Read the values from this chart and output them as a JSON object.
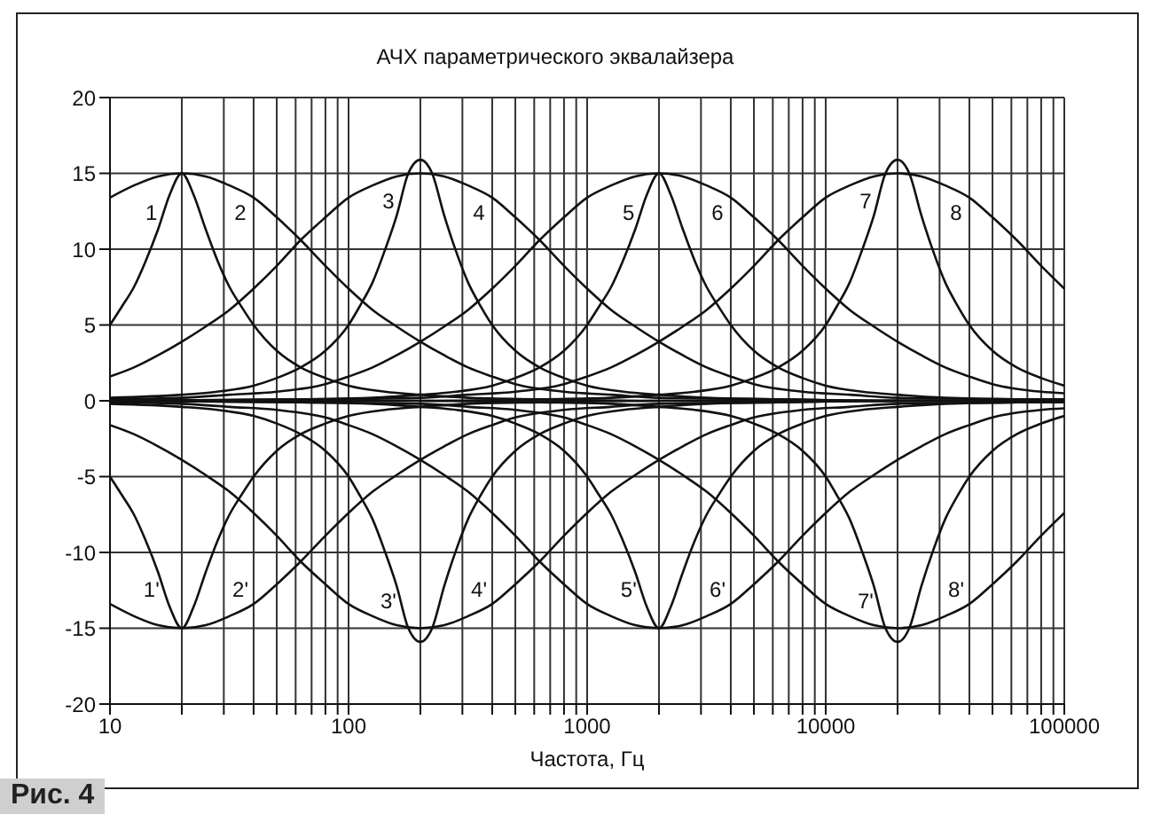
{
  "chart_data": {
    "type": "line",
    "title": "АЧХ параметрического эквалайзера",
    "xlabel": "Частота, Гц",
    "log": "x",
    "grid": true,
    "xlim": [
      10,
      100000
    ],
    "xticks": [
      10,
      {
        "value": 20,
        "label": null
      },
      {
        "value": 30,
        "label": null
      },
      {
        "value": 40,
        "label": null
      },
      {
        "value": 50,
        "label": null
      },
      {
        "value": 60,
        "label": null
      },
      {
        "value": 70,
        "label": null
      },
      {
        "value": 80,
        "label": null
      },
      {
        "value": 90,
        "label": null
      },
      100,
      {
        "value": 200,
        "label": null
      },
      {
        "value": 300,
        "label": null
      },
      {
        "value": 400,
        "label": null
      },
      {
        "value": 500,
        "label": null
      },
      {
        "value": 600,
        "label": null
      },
      {
        "value": 700,
        "label": null
      },
      {
        "value": 800,
        "label": null
      },
      {
        "value": 900,
        "label": null
      },
      1000,
      {
        "value": 2000,
        "label": null
      },
      {
        "value": 3000,
        "label": null
      },
      {
        "value": 4000,
        "label": null
      },
      {
        "value": 5000,
        "label": null
      },
      {
        "value": 6000,
        "label": null
      },
      {
        "value": 7000,
        "label": null
      },
      {
        "value": 8000,
        "label": null
      },
      {
        "value": 9000,
        "label": null
      },
      10000,
      {
        "value": 20000,
        "label": null
      },
      {
        "value": 30000,
        "label": null
      },
      {
        "value": 40000,
        "label": null
      },
      {
        "value": 50000,
        "label": null
      },
      {
        "value": 60000,
        "label": null
      },
      {
        "value": 70000,
        "label": null
      },
      {
        "value": 80000,
        "label": null
      },
      {
        "value": 90000,
        "label": null
      },
      100000
    ],
    "ylim": [
      -20,
      20
    ],
    "yticks": [
      -20,
      -15,
      -10,
      -5,
      0,
      5,
      10,
      15,
      20
    ],
    "series": [
      {
        "name": "1",
        "color": "#111111",
        "x": [
          10,
          11.2,
          12.6,
          14.1,
          15.9,
          17.8,
          20,
          22.4,
          25.2,
          28.3,
          31.7,
          35.6,
          40,
          50,
          63,
          80,
          100,
          142,
          200,
          317,
          632,
          2000,
          100000
        ],
        "values": [
          5.0,
          6.2,
          7.5,
          9.2,
          11.3,
          13.6,
          15,
          13.6,
          11.3,
          9.2,
          7.5,
          6.2,
          5.0,
          3.3,
          2.2,
          1.5,
          1.0,
          0.6,
          0.4,
          0.2,
          0.1,
          0,
          0
        ]
      },
      {
        "name": "2",
        "color": "#111111",
        "x": [
          10,
          12.6,
          15.9,
          20,
          25.2,
          31.7,
          40,
          50,
          63,
          80,
          100,
          126,
          159,
          200,
          252,
          317,
          400,
          500,
          800,
          1260,
          2000,
          6320,
          20000,
          100000
        ],
        "values": [
          13.4,
          14.2,
          14.8,
          15,
          14.8,
          14.2,
          13.4,
          12.1,
          10.6,
          8.9,
          7.4,
          6.0,
          4.9,
          3.9,
          3.0,
          2.2,
          1.6,
          1.1,
          0.6,
          0.4,
          0.2,
          0.1,
          0,
          0
        ]
      },
      {
        "name": "3",
        "color": "#111111",
        "x": [
          10,
          20,
          28.2,
          40,
          50,
          63,
          80,
          100,
          112,
          126,
          141,
          159,
          178,
          200,
          224,
          252,
          283,
          317,
          356,
          400,
          500,
          632,
          800,
          1000,
          1420,
          2000,
          3170,
          6320,
          20000,
          100000
        ],
        "values": [
          0.2,
          0.4,
          0.6,
          1.0,
          1.5,
          2.2,
          3.3,
          5.0,
          6.3,
          7.8,
          9.8,
          12.2,
          15.0,
          15.9,
          15.0,
          12.2,
          9.8,
          7.8,
          6.3,
          5.0,
          3.3,
          2.2,
          1.5,
          1.0,
          0.6,
          0.4,
          0.2,
          0.1,
          0,
          0
        ]
      },
      {
        "name": "4",
        "color": "#111111",
        "x": [
          10,
          12.6,
          15.9,
          20,
          25.2,
          31.7,
          40,
          50,
          63,
          80,
          100,
          126,
          159,
          200,
          252,
          317,
          400,
          500,
          632,
          800,
          1000,
          1260,
          1590,
          2000,
          2520,
          3170,
          4000,
          5000,
          8000,
          12600,
          20000,
          63200,
          100000
        ],
        "values": [
          1.6,
          2.2,
          3.0,
          3.9,
          4.9,
          6.0,
          7.4,
          8.9,
          10.6,
          12.1,
          13.4,
          14.2,
          14.8,
          15,
          14.8,
          14.2,
          13.4,
          12.1,
          10.6,
          8.9,
          7.4,
          6.0,
          4.9,
          3.9,
          3.0,
          2.2,
          1.6,
          1.1,
          0.6,
          0.4,
          0.2,
          0.1,
          0
        ]
      },
      {
        "name": "5",
        "color": "#111111",
        "x": [
          10,
          63,
          126,
          200,
          283,
          400,
          500,
          632,
          800,
          1000,
          1120,
          1260,
          1410,
          1590,
          1780,
          2000,
          2240,
          2520,
          2830,
          3170,
          3560,
          4000,
          5000,
          6320,
          8000,
          10000,
          14200,
          20000,
          31700,
          63200,
          100000
        ],
        "values": [
          0,
          0.1,
          0.2,
          0.4,
          0.6,
          1.0,
          1.5,
          2.2,
          3.3,
          5.0,
          6.2,
          7.5,
          9.2,
          11.3,
          13.6,
          15,
          13.6,
          11.3,
          9.2,
          7.5,
          6.2,
          5.0,
          3.3,
          2.2,
          1.5,
          1.0,
          0.6,
          0.4,
          0.2,
          0.1,
          0.1
        ]
      },
      {
        "name": "6",
        "color": "#111111",
        "x": [
          10,
          20,
          31.7,
          50,
          80,
          100,
          126,
          159,
          200,
          252,
          317,
          400,
          500,
          632,
          800,
          1000,
          1260,
          1590,
          2000,
          2520,
          3170,
          4000,
          5000,
          6320,
          8000,
          10000,
          12600,
          15900,
          20000,
          25200,
          31700,
          40000,
          50000,
          80000,
          100000
        ],
        "values": [
          0.1,
          0.2,
          0.4,
          0.6,
          1.1,
          1.6,
          2.2,
          3.0,
          3.9,
          4.9,
          6.0,
          7.4,
          8.9,
          10.6,
          12.1,
          13.4,
          14.2,
          14.8,
          15,
          14.8,
          14.2,
          13.4,
          12.1,
          10.6,
          8.9,
          7.4,
          6.0,
          4.9,
          3.9,
          3.0,
          2.2,
          1.6,
          1.1,
          0.6,
          0.5
        ]
      },
      {
        "name": "7",
        "color": "#111111",
        "x": [
          10,
          200,
          632,
          1260,
          2000,
          2830,
          4000,
          5000,
          6320,
          8000,
          10000,
          11200,
          12600,
          14100,
          15900,
          17800,
          20000,
          22400,
          25200,
          28300,
          31700,
          35600,
          40000,
          50000,
          63200,
          80000,
          100000
        ],
        "values": [
          0,
          0,
          0.1,
          0.2,
          0.4,
          0.6,
          1.0,
          1.5,
          2.2,
          3.3,
          5.0,
          6.3,
          7.8,
          9.8,
          12.2,
          15.0,
          15.9,
          15.0,
          12.2,
          9.8,
          7.8,
          6.3,
          5.0,
          3.3,
          2.2,
          1.5,
          1.0
        ]
      },
      {
        "name": "8",
        "color": "#111111",
        "x": [
          10,
          63,
          200,
          317,
          500,
          800,
          1000,
          1260,
          1590,
          2000,
          2520,
          3170,
          4000,
          5000,
          6320,
          8000,
          10000,
          12600,
          15900,
          20000,
          25200,
          31700,
          40000,
          50000,
          63200,
          80000,
          100000
        ],
        "values": [
          0,
          0.1,
          0.2,
          0.4,
          0.6,
          1.1,
          1.6,
          2.2,
          3.0,
          3.9,
          4.9,
          6.0,
          7.4,
          8.9,
          10.6,
          12.1,
          13.4,
          14.2,
          14.8,
          15,
          14.8,
          14.2,
          13.4,
          12.1,
          10.6,
          8.9,
          7.4
        ]
      },
      {
        "name": "1'",
        "color": "#111111",
        "x": [
          10,
          11.2,
          12.6,
          14.1,
          15.9,
          17.8,
          20,
          22.4,
          25.2,
          28.3,
          31.7,
          35.6,
          40,
          50,
          63,
          80,
          100,
          142,
          200,
          317,
          632,
          2000,
          100000
        ],
        "values": [
          -5.0,
          -6.2,
          -7.5,
          -9.2,
          -11.3,
          -13.6,
          -15,
          -13.6,
          -11.3,
          -9.2,
          -7.5,
          -6.2,
          -5.0,
          -3.3,
          -2.2,
          -1.5,
          -1.0,
          -0.6,
          -0.4,
          -0.2,
          -0.1,
          0,
          0
        ]
      },
      {
        "name": "2'",
        "color": "#111111",
        "x": [
          10,
          12.6,
          15.9,
          20,
          25.2,
          31.7,
          40,
          50,
          63,
          80,
          100,
          126,
          159,
          200,
          252,
          317,
          400,
          500,
          800,
          1260,
          2000,
          6320,
          20000,
          100000
        ],
        "values": [
          -13.4,
          -14.2,
          -14.8,
          -15,
          -14.8,
          -14.2,
          -13.4,
          -12.1,
          -10.6,
          -8.9,
          -7.4,
          -6.0,
          -4.9,
          -3.9,
          -3.0,
          -2.2,
          -1.6,
          -1.1,
          -0.6,
          -0.4,
          -0.2,
          -0.1,
          0,
          0
        ]
      },
      {
        "name": "3'",
        "color": "#111111",
        "x": [
          10,
          20,
          28.2,
          40,
          50,
          63,
          80,
          100,
          112,
          126,
          141,
          159,
          178,
          200,
          224,
          252,
          283,
          317,
          356,
          400,
          500,
          632,
          800,
          1000,
          1420,
          2000,
          3170,
          6320,
          20000,
          100000
        ],
        "values": [
          -0.2,
          -0.4,
          -0.6,
          -1.0,
          -1.5,
          -2.2,
          -3.3,
          -5.0,
          -6.3,
          -7.8,
          -9.8,
          -12.2,
          -15.0,
          -15.9,
          -15.0,
          -12.2,
          -9.8,
          -7.8,
          -6.3,
          -5.0,
          -3.3,
          -2.2,
          -1.5,
          -1.0,
          -0.6,
          -0.4,
          -0.2,
          -0.1,
          0,
          0
        ]
      },
      {
        "name": "4'",
        "color": "#111111",
        "x": [
          10,
          12.6,
          15.9,
          20,
          25.2,
          31.7,
          40,
          50,
          63,
          80,
          100,
          126,
          159,
          200,
          252,
          317,
          400,
          500,
          632,
          800,
          1000,
          1260,
          1590,
          2000,
          2520,
          3170,
          4000,
          5000,
          8000,
          12600,
          20000,
          63200,
          100000
        ],
        "values": [
          -1.6,
          -2.2,
          -3.0,
          -3.9,
          -4.9,
          -6.0,
          -7.4,
          -8.9,
          -10.6,
          -12.1,
          -13.4,
          -14.2,
          -14.8,
          -15,
          -14.8,
          -14.2,
          -13.4,
          -12.1,
          -10.6,
          -8.9,
          -7.4,
          -6.0,
          -4.9,
          -3.9,
          -3.0,
          -2.2,
          -1.6,
          -1.1,
          -0.6,
          -0.4,
          -0.2,
          -0.1,
          0
        ]
      },
      {
        "name": "5'",
        "color": "#111111",
        "x": [
          10,
          63,
          126,
          200,
          283,
          400,
          500,
          632,
          800,
          1000,
          1120,
          1260,
          1410,
          1590,
          1780,
          2000,
          2240,
          2520,
          2830,
          3170,
          3560,
          4000,
          5000,
          6320,
          8000,
          10000,
          14200,
          20000,
          31700,
          63200,
          100000
        ],
        "values": [
          0,
          -0.1,
          -0.2,
          -0.4,
          -0.6,
          -1.0,
          -1.5,
          -2.2,
          -3.3,
          -5.0,
          -6.2,
          -7.5,
          -9.2,
          -11.3,
          -13.6,
          -15,
          -13.6,
          -11.3,
          -9.2,
          -7.5,
          -6.2,
          -5.0,
          -3.3,
          -2.2,
          -1.5,
          -1.0,
          -0.6,
          -0.4,
          -0.2,
          -0.1,
          -0.1
        ]
      },
      {
        "name": "6'",
        "color": "#111111",
        "x": [
          10,
          20,
          31.7,
          50,
          80,
          100,
          126,
          159,
          200,
          252,
          317,
          400,
          500,
          632,
          800,
          1000,
          1260,
          1590,
          2000,
          2520,
          3170,
          4000,
          5000,
          6320,
          8000,
          10000,
          12600,
          15900,
          20000,
          25200,
          31700,
          40000,
          50000,
          80000,
          100000
        ],
        "values": [
          -0.1,
          -0.2,
          -0.4,
          -0.6,
          -1.1,
          -1.6,
          -2.2,
          -3.0,
          -3.9,
          -4.9,
          -6.0,
          -7.4,
          -8.9,
          -10.6,
          -12.1,
          -13.4,
          -14.2,
          -14.8,
          -15,
          -14.8,
          -14.2,
          -13.4,
          -12.1,
          -10.6,
          -8.9,
          -7.4,
          -6.0,
          -4.9,
          -3.9,
          -3.0,
          -2.2,
          -1.6,
          -1.1,
          -0.6,
          -0.5
        ]
      },
      {
        "name": "7'",
        "color": "#111111",
        "x": [
          10,
          200,
          632,
          1260,
          2000,
          2830,
          4000,
          5000,
          6320,
          8000,
          10000,
          11200,
          12600,
          14100,
          15900,
          17800,
          20000,
          22400,
          25200,
          28300,
          31700,
          35600,
          40000,
          50000,
          63200,
          80000,
          100000
        ],
        "values": [
          0,
          0,
          -0.1,
          -0.2,
          -0.4,
          -0.6,
          -1.0,
          -1.5,
          -2.2,
          -3.3,
          -5.0,
          -6.3,
          -7.8,
          -9.8,
          -12.2,
          -15.0,
          -15.9,
          -15.0,
          -12.2,
          -9.8,
          -7.8,
          -6.3,
          -5.0,
          -3.3,
          -2.2,
          -1.5,
          -1.0
        ]
      },
      {
        "name": "8'",
        "color": "#111111",
        "x": [
          10,
          63,
          200,
          317,
          500,
          800,
          1000,
          1260,
          1590,
          2000,
          2520,
          3170,
          4000,
          5000,
          6320,
          8000,
          10000,
          12600,
          15900,
          20000,
          25200,
          31700,
          40000,
          50000,
          63200,
          80000,
          100000
        ],
        "values": [
          0,
          -0.1,
          -0.2,
          -0.4,
          -0.6,
          -1.1,
          -1.6,
          -2.2,
          -3.0,
          -3.9,
          -4.9,
          -6.0,
          -7.4,
          -8.9,
          -10.6,
          -12.1,
          -13.4,
          -14.2,
          -14.8,
          -15,
          -14.8,
          -14.2,
          -13.4,
          -12.1,
          -10.6,
          -8.9,
          -7.4
        ]
      }
    ],
    "annotations": [
      "Рис. 4"
    ]
  }
}
